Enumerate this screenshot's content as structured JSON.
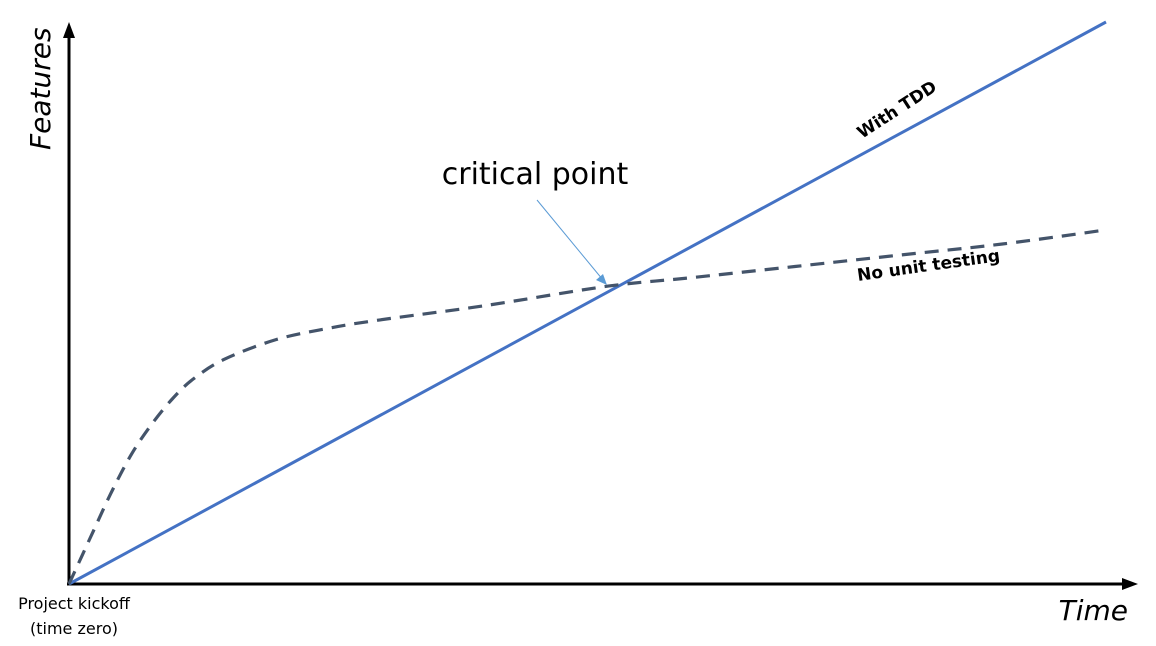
{
  "chart_data": {
    "type": "line",
    "xlabel": "Time",
    "ylabel": "Features",
    "xlim": [
      0,
      100
    ],
    "ylim": [
      0,
      100
    ],
    "grid": false,
    "legend": "none",
    "origin_label": [
      "Project kickoff",
      "(time zero)"
    ],
    "annotation": {
      "text": "critical point",
      "x": 52,
      "y": 53
    },
    "series": [
      {
        "name": "With TDD",
        "style": "solid",
        "color": "#4472C4",
        "x": [
          0,
          100
        ],
        "y": [
          0,
          100
        ]
      },
      {
        "name": "No unit testing",
        "style": "dashed",
        "color": "#44546A",
        "x": [
          0,
          2,
          4,
          6,
          8,
          10,
          12,
          15,
          20,
          25,
          30,
          40,
          52,
          60,
          70,
          80,
          90,
          100
        ],
        "y": [
          0,
          8,
          16,
          23,
          28.5,
          33,
          36.5,
          40,
          43.5,
          45.5,
          47,
          49.5,
          53,
          54.5,
          56.5,
          58.5,
          60.5,
          63
        ]
      }
    ]
  }
}
